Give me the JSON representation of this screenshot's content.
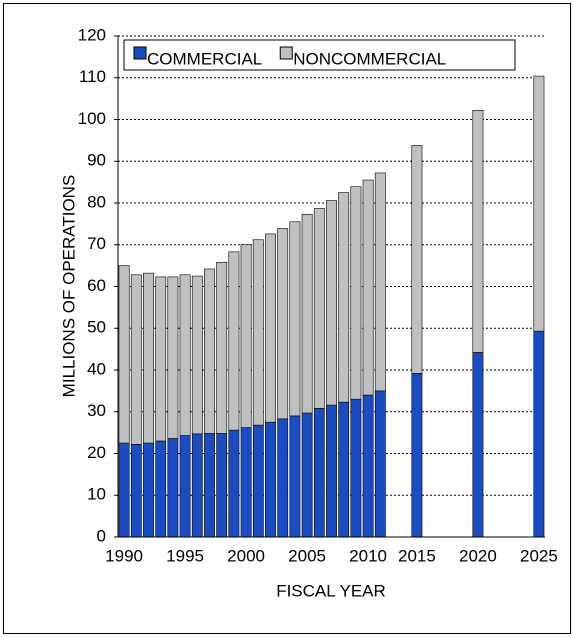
{
  "chart_data": {
    "type": "stacked-bar",
    "xlabel": "FISCAL YEAR",
    "ylabel": "MILLIONS OF OPERATIONS",
    "categories": [
      "1990",
      null,
      null,
      null,
      null,
      "1995",
      null,
      null,
      null,
      null,
      "2000",
      null,
      null,
      null,
      null,
      "2005",
      null,
      null,
      null,
      null,
      "2010",
      null,
      null,
      null,
      "2015",
      null,
      null,
      null,
      null,
      "2020",
      null,
      null,
      null,
      null,
      "2025"
    ],
    "series": [
      {
        "name": "COMMERCIAL",
        "color": "#1c4cc4",
        "values": [
          22.5,
          22.2,
          22.5,
          23,
          23.6,
          24.3,
          24.7,
          24.8,
          24.8,
          25.6,
          26.2,
          26.8,
          27.5,
          28.3,
          29,
          29.7,
          30.8,
          31.6,
          32.3,
          33,
          34,
          35,
          null,
          null,
          39.2,
          null,
          null,
          null,
          null,
          44.2,
          null,
          null,
          null,
          null,
          49.3
        ]
      },
      {
        "name": "NONCOMMERCIAL",
        "color": "#c0c0c0",
        "values": [
          42.5,
          40.6,
          40.7,
          39.3,
          38.7,
          38.5,
          37.8,
          39.4,
          41,
          42.7,
          43.8,
          44.4,
          45.1,
          45.6,
          46.5,
          47.6,
          47.9,
          49,
          50.2,
          50.9,
          51.5,
          52.2,
          null,
          null,
          54.6,
          null,
          null,
          null,
          null,
          58,
          null,
          null,
          null,
          null,
          61.1
        ]
      }
    ],
    "ylim": [
      0,
      120
    ],
    "yticks": [
      0,
      10,
      20,
      30,
      40,
      50,
      60,
      70,
      80,
      90,
      100,
      110,
      120
    ],
    "grid": true
  }
}
